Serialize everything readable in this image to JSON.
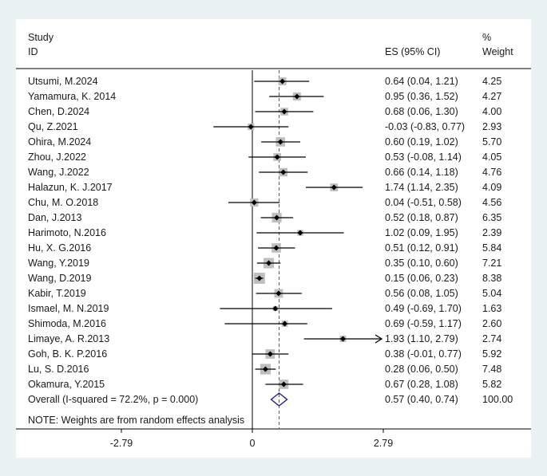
{
  "chart_data": {
    "type": "forest",
    "header": {
      "study_line1": "Study",
      "study_line2": "ID",
      "es_label": "ES (95% CI)",
      "weight_line1": "%",
      "weight_line2": "Weight"
    },
    "studies": [
      {
        "id": "Utsumi, M.2024",
        "es": 0.64,
        "lo": 0.04,
        "hi": 1.21,
        "ci": "0.64 (0.04, 1.21)",
        "weight": "4.25"
      },
      {
        "id": "Yamamura, K. 2014",
        "es": 0.95,
        "lo": 0.36,
        "hi": 1.52,
        "ci": "0.95 (0.36, 1.52)",
        "weight": "4.27"
      },
      {
        "id": "Chen, D.2024",
        "es": 0.68,
        "lo": 0.06,
        "hi": 1.3,
        "ci": "0.68 (0.06, 1.30)",
        "weight": "4.00"
      },
      {
        "id": "Qu, Z.2021",
        "es": -0.03,
        "lo": -0.83,
        "hi": 0.77,
        "ci": "-0.03 (-0.83, 0.77)",
        "weight": "2.93"
      },
      {
        "id": "Ohira, M.2024",
        "es": 0.6,
        "lo": 0.19,
        "hi": 1.02,
        "ci": "0.60 (0.19, 1.02)",
        "weight": "5.70"
      },
      {
        "id": "Zhou, J.2022",
        "es": 0.53,
        "lo": -0.08,
        "hi": 1.14,
        "ci": "0.53 (-0.08, 1.14)",
        "weight": "4.05"
      },
      {
        "id": "Wang, J.2022",
        "es": 0.66,
        "lo": 0.14,
        "hi": 1.18,
        "ci": "0.66 (0.14, 1.18)",
        "weight": "4.76"
      },
      {
        "id": "Halazun, K. J.2017",
        "es": 1.74,
        "lo": 1.14,
        "hi": 2.35,
        "ci": "1.74 (1.14, 2.35)",
        "weight": "4.09"
      },
      {
        "id": "Chu, M. O.2018",
        "es": 0.04,
        "lo": -0.51,
        "hi": 0.58,
        "ci": "0.04 (-0.51, 0.58)",
        "weight": "4.56"
      },
      {
        "id": "Dan, J.2013",
        "es": 0.52,
        "lo": 0.18,
        "hi": 0.87,
        "ci": "0.52 (0.18, 0.87)",
        "weight": "6.35"
      },
      {
        "id": "Harimoto, N.2016",
        "es": 1.02,
        "lo": 0.09,
        "hi": 1.95,
        "ci": "1.02 (0.09, 1.95)",
        "weight": "2.39"
      },
      {
        "id": "Hu, X. G.2016",
        "es": 0.51,
        "lo": 0.12,
        "hi": 0.91,
        "ci": "0.51 (0.12, 0.91)",
        "weight": "5.84"
      },
      {
        "id": "Wang, Y.2019",
        "es": 0.35,
        "lo": 0.1,
        "hi": 0.6,
        "ci": "0.35 (0.10, 0.60)",
        "weight": "7.21"
      },
      {
        "id": "Wang, D.2019",
        "es": 0.15,
        "lo": 0.06,
        "hi": 0.23,
        "ci": "0.15 (0.06, 0.23)",
        "weight": "8.38"
      },
      {
        "id": "Kabir, T.2019",
        "es": 0.56,
        "lo": 0.08,
        "hi": 1.05,
        "ci": "0.56 (0.08, 1.05)",
        "weight": "5.04"
      },
      {
        "id": "Ismael, M. N.2019",
        "es": 0.49,
        "lo": -0.69,
        "hi": 1.7,
        "ci": "0.49 (-0.69, 1.70)",
        "weight": "1.63"
      },
      {
        "id": "Shimoda, M.2016",
        "es": 0.69,
        "lo": -0.59,
        "hi": 1.17,
        "ci": "0.69 (-0.59, 1.17)",
        "weight": "2.60"
      },
      {
        "id": "Limaye, A. R.2013",
        "es": 1.93,
        "lo": 1.1,
        "hi": 2.79,
        "ci": "1.93 (1.10, 2.79)",
        "weight": "2.74",
        "arrow": true
      },
      {
        "id": "Goh, B. K. P.2016",
        "es": 0.38,
        "lo": -0.01,
        "hi": 0.77,
        "ci": "0.38 (-0.01, 0.77)",
        "weight": "5.92"
      },
      {
        "id": "Lu, S. D.2016",
        "es": 0.28,
        "lo": 0.06,
        "hi": 0.5,
        "ci": "0.28 (0.06, 0.50)",
        "weight": "7.48"
      },
      {
        "id": "Okamura, Y.2015",
        "es": 0.67,
        "lo": 0.28,
        "hi": 1.08,
        "ci": "0.67 (0.28, 1.08)",
        "weight": "5.82"
      }
    ],
    "overall": {
      "label": "Overall  (I-squared = 72.2%, p = 0.000)",
      "es": 0.57,
      "lo": 0.4,
      "hi": 0.74,
      "ci": "0.57 (0.40, 0.74)",
      "weight": "100.00"
    },
    "note": "NOTE: Weights are from random effects analysis",
    "xaxis": {
      "range": [
        -2.79,
        2.79
      ],
      "ticks": [
        {
          "value": -2.79,
          "label": "-2.79"
        },
        {
          "value": 0,
          "label": "0"
        },
        {
          "value": 2.79,
          "label": "2.79"
        }
      ]
    },
    "colors": {
      "line": "#000000",
      "box": "#bfbfbf",
      "diamond": "#1f1f8f",
      "dashed": "#b03060"
    }
  }
}
